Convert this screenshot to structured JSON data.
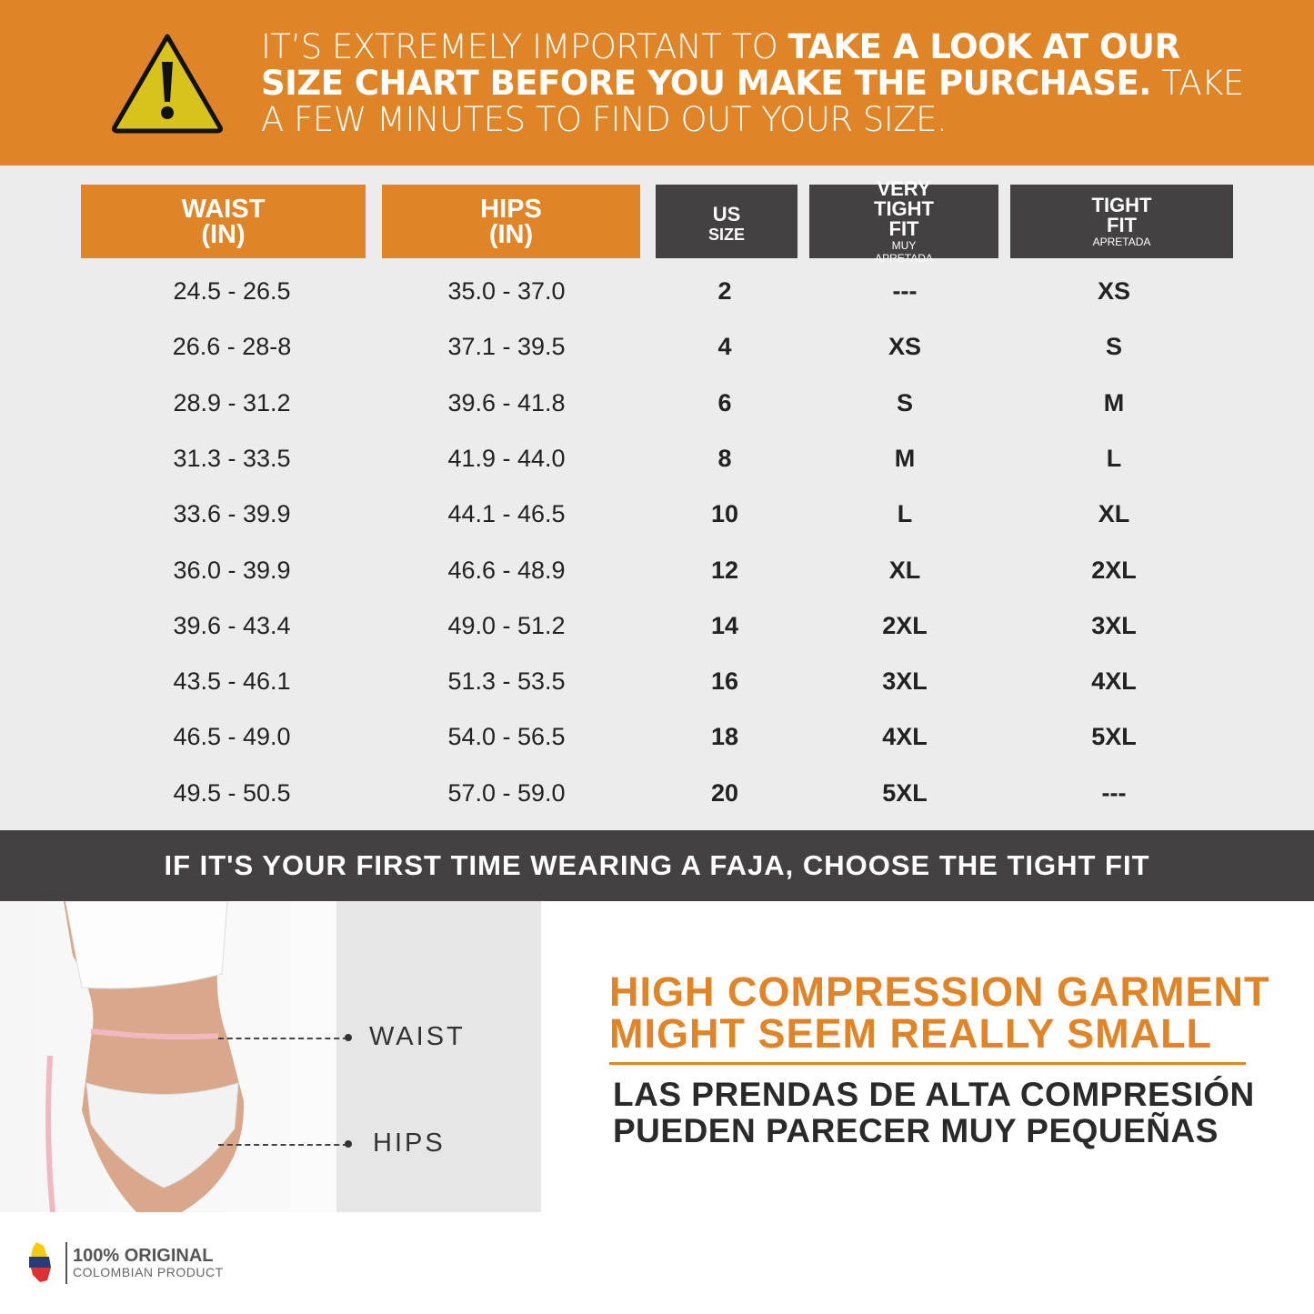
{
  "banner": {
    "text_light_1": "IT’S EXTREMELY IMPORTANT TO ",
    "text_bold": "TAKE A LOOK AT OUR SIZE CHART BEFORE YOU MAKE THE PURCHASE.",
    "text_light_2": " TAKE A FEW MINUTES TO FIND OUT YOUR SIZE.",
    "icon": "warning-triangle-icon"
  },
  "table": {
    "headers": [
      {
        "title": "WAIST",
        "sub": "(IN)"
      },
      {
        "title": "HIPS",
        "sub": "(IN)"
      },
      {
        "title": "US",
        "sub": "SIZE"
      },
      {
        "title": "VERY TIGHT FIT",
        "sub": "MUY APRETADA"
      },
      {
        "title": "TIGHT FIT",
        "sub": "APRETADA"
      }
    ],
    "rows": [
      [
        "24.5 - 26.5",
        "35.0 - 37.0",
        "2",
        "---",
        "XS"
      ],
      [
        "26.6 - 28-8",
        "37.1 - 39.5",
        "4",
        "XS",
        "S"
      ],
      [
        "28.9 - 31.2",
        "39.6 - 41.8",
        "6",
        "S",
        "M"
      ],
      [
        "31.3 - 33.5",
        "41.9 - 44.0",
        "8",
        "M",
        "L"
      ],
      [
        "33.6 - 39.9",
        "44.1 - 46.5",
        "10",
        "L",
        "XL"
      ],
      [
        "36.0 - 39.9",
        "46.6 - 48.9",
        "12",
        "XL",
        "2XL"
      ],
      [
        "39.6 - 43.4",
        "49.0 - 51.2",
        "14",
        "2XL",
        "3XL"
      ],
      [
        "43.5 - 46.1",
        "51.3 - 53.5",
        "16",
        "3XL",
        "4XL"
      ],
      [
        "46.5 - 49.0",
        "54.0 - 56.5",
        "18",
        "4XL",
        "5XL"
      ],
      [
        "49.5 - 50.5",
        "57.0 - 59.0",
        "20",
        "5XL",
        "---"
      ]
    ]
  },
  "notice": "IF IT'S YOUR FIRST TIME WEARING A FAJA, CHOOSE THE TIGHT FIT",
  "measure": {
    "waist": "WAIST",
    "hips": "HIPS"
  },
  "headline": {
    "line1": "HIGH COMPRESSION GARMENT",
    "line2": "MIGHT SEEM REALLY SMALL"
  },
  "subheadline": {
    "line1": "LAS PRENDAS DE ALTA COMPRESIÓN",
    "line2": "PUEDEN PARECER MUY PEQUEÑAS"
  },
  "logo": {
    "line1": "100% ORIGINAL",
    "line2": "COLOMBIAN PRODUCT"
  },
  "colors": {
    "orange": "#e08428",
    "dark": "#434142",
    "light_gray": "#ececec"
  }
}
